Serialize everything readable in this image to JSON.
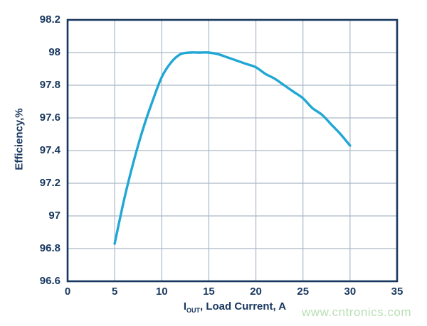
{
  "watermark": {
    "text": "www.cntronics.com",
    "color": "#B9DFB4"
  },
  "chart_data": {
    "type": "line",
    "title": "",
    "xlabel_prefix": "I",
    "xlabel_sub": "OUT",
    "xlabel_rest": ", Load Current, A",
    "ylabel": "Efficiency,%",
    "xlim": [
      0,
      35
    ],
    "ylim": [
      96.6,
      98.2
    ],
    "x_ticks": [
      0,
      5,
      10,
      15,
      20,
      25,
      30,
      35
    ],
    "x_tick_labels": [
      "0",
      "5",
      "10",
      "15",
      "20",
      "25",
      "30",
      "35"
    ],
    "y_ticks": [
      96.6,
      96.8,
      97.0,
      97.2,
      97.4,
      97.6,
      97.8,
      98.0,
      98.2
    ],
    "y_tick_labels": [
      "96.6",
      "96.8",
      "97",
      "97.2",
      "97.4",
      "97.6",
      "97.8",
      "98",
      "98.2"
    ],
    "grid": true,
    "legend": null,
    "series": [
      {
        "name": "Efficiency",
        "x": [
          5,
          6,
          7,
          8,
          9,
          10,
          11,
          12,
          13,
          14,
          15,
          16,
          17,
          18,
          19,
          20,
          21,
          22,
          23,
          24,
          25,
          26,
          27,
          28,
          29,
          30
        ],
        "y": [
          96.83,
          97.1,
          97.33,
          97.53,
          97.7,
          97.85,
          97.94,
          97.99,
          98.0,
          98.0,
          98.0,
          97.99,
          97.97,
          97.95,
          97.93,
          97.91,
          97.87,
          97.84,
          97.8,
          97.76,
          97.72,
          97.66,
          97.62,
          97.56,
          97.5,
          97.43
        ]
      }
    ],
    "colors": {
      "axis": "#17375E",
      "grid": "#AAB9C8",
      "line": "#21A7D4",
      "background": "#FFFFFF"
    }
  }
}
